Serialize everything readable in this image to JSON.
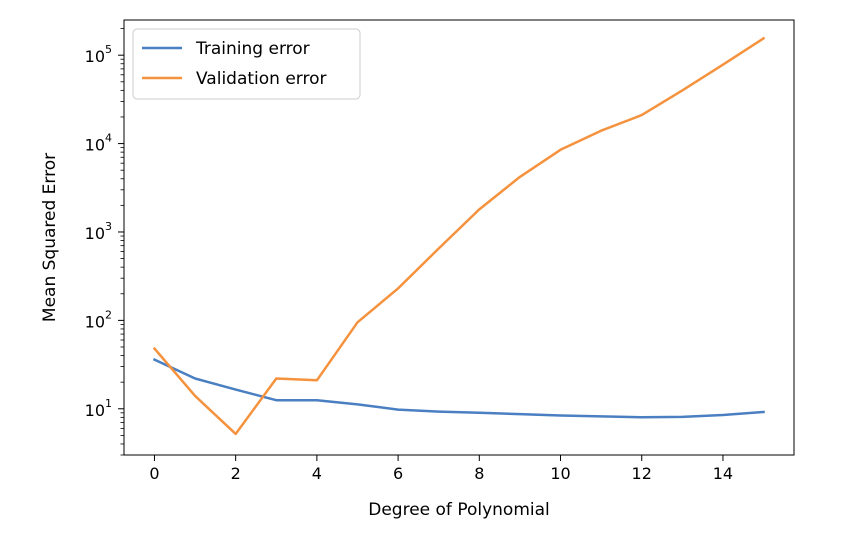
{
  "chart_data": {
    "type": "line",
    "title": "",
    "xlabel": "Degree of Polynomial",
    "ylabel": "Mean Squared Error",
    "yscale": "log",
    "xlim": [
      -0.75,
      15.75
    ],
    "ylim": [
      3,
      250000
    ],
    "x_ticks": [
      0,
      2,
      4,
      6,
      8,
      10,
      12,
      14
    ],
    "y_ticks": [
      {
        "value": 10,
        "base": "10",
        "exp": "1"
      },
      {
        "value": 100,
        "base": "10",
        "exp": "2"
      },
      {
        "value": 1000,
        "base": "10",
        "exp": "3"
      },
      {
        "value": 10000,
        "base": "10",
        "exp": "4"
      },
      {
        "value": 100000,
        "base": "10",
        "exp": "5"
      }
    ],
    "x": [
      0,
      1,
      2,
      3,
      4,
      5,
      6,
      7,
      8,
      9,
      10,
      11,
      12,
      13,
      14,
      15
    ],
    "series": [
      {
        "name": "Training error",
        "color": "#4a7fc1",
        "values": [
          36,
          22,
          16.5,
          12.5,
          12.5,
          11.2,
          9.8,
          9.3,
          9.0,
          8.7,
          8.4,
          8.2,
          8.0,
          8.1,
          8.5,
          9.2
        ]
      },
      {
        "name": "Validation error",
        "color": "#f5923e",
        "values": [
          48,
          14,
          5.2,
          22,
          21,
          95,
          230,
          650,
          1800,
          4200,
          8500,
          14000,
          21000,
          40000,
          78000,
          155000
        ]
      }
    ],
    "legend": "upper-left",
    "grid": false
  }
}
